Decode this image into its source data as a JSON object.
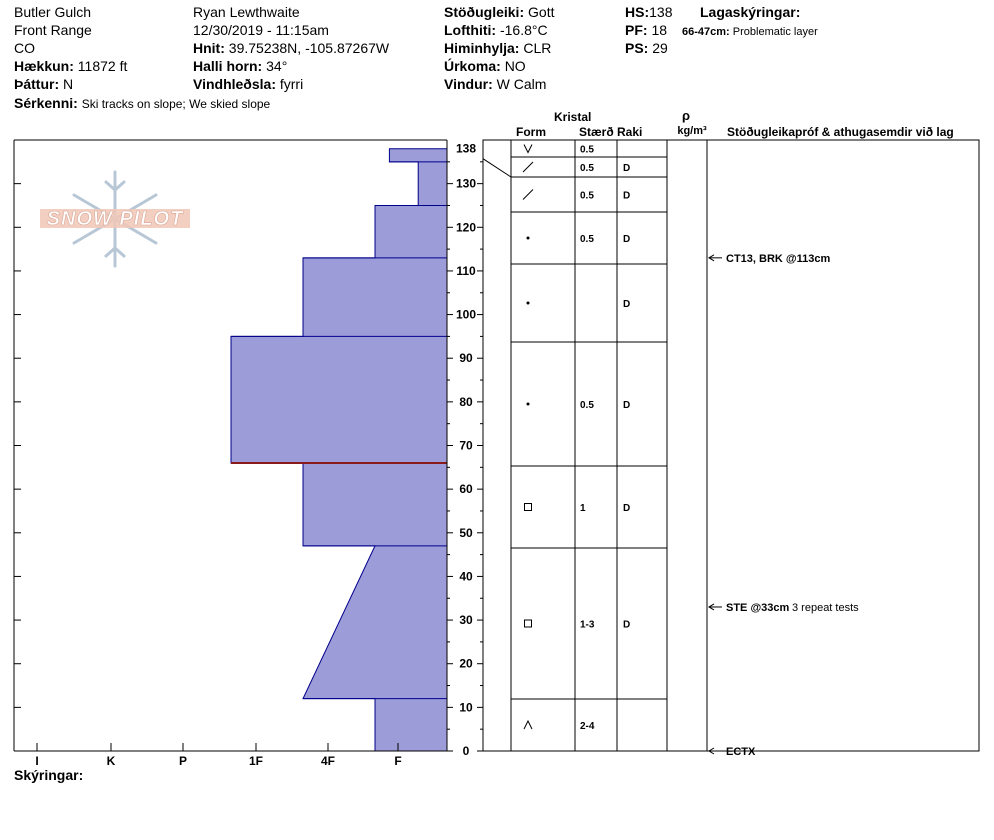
{
  "header": {
    "location": "Butler Gulch",
    "range": "Front Range",
    "state": "CO",
    "elevation_label": "Hækkun:",
    "elevation": "11872 ft",
    "aspect_label": "Þáttur:",
    "aspect": "N",
    "features_label": "Sérkenni:",
    "features": "Ski tracks on slope; We skied slope",
    "observer": "Ryan Lewthwaite",
    "datetime": "12/30/2019 - 11:15am",
    "coords_label": "Hnit:",
    "coords": "39.75238N, -105.87267W",
    "slope_label": "Halli horn:",
    "slope": "34°",
    "wind_loading_label": "Vindhleðsla:",
    "wind_loading": "fyrri",
    "stability_label": "Stöðugleiki:",
    "stability": "Gott",
    "air_temp_label": "Lofthiti:",
    "air_temp": "-16.8°C",
    "sky_label": "Himinhylja:",
    "sky": "CLR",
    "precip_label": "Úrkoma:",
    "precip": "NO",
    "wind_label": "Vindur:",
    "wind": "W Calm",
    "hs_label": "HS:",
    "hs": "138",
    "pf_label": "PF:",
    "pf": "18",
    "ps_label": "PS:",
    "ps": "29",
    "layer_notes_label": "Lagaskýringar:",
    "layer_note_range": "66-47cm:",
    "layer_note_text": "Problematic layer"
  },
  "logo": {
    "text": "SNOW PILOT"
  },
  "columns": {
    "crystal": "Kristal",
    "form": "Form",
    "size": "Stærð",
    "moisture": "Raki",
    "rho": "ρ",
    "density_unit": "kg/m³",
    "tests": "Stöðugleikapróf & athugasemdir við lag"
  },
  "footer": {
    "notes_label": "Skýringar:"
  },
  "chart_data": {
    "type": "area",
    "title": "",
    "xlabel": "",
    "ylabel": "",
    "ylim": [
      0,
      140
    ],
    "yticks": [
      0,
      10,
      20,
      30,
      40,
      50,
      60,
      70,
      80,
      90,
      100,
      110,
      120,
      130,
      138
    ],
    "hardness_ticks": [
      "I",
      "K",
      "P",
      "1F",
      "4F",
      "F"
    ],
    "hardness_profile": [
      {
        "h": 0,
        "hardness": 1.0
      },
      {
        "h": 12,
        "hardness": 1.0
      },
      {
        "h": 12,
        "hardness": 2.0
      },
      {
        "h": 47,
        "hardness": 1.0
      },
      {
        "h": 47,
        "hardness": 2.0
      },
      {
        "h": 66,
        "hardness": 2.0
      },
      {
        "h": 66,
        "hardness": 3.0
      },
      {
        "h": 95,
        "hardness": 3.0
      },
      {
        "h": 95,
        "hardness": 2.0
      },
      {
        "h": 113,
        "hardness": 2.0
      },
      {
        "h": 113,
        "hardness": 1.0
      },
      {
        "h": 125,
        "hardness": 1.0
      },
      {
        "h": 125,
        "hardness": 0.4
      },
      {
        "h": 135,
        "hardness": 0.4
      },
      {
        "h": 135,
        "hardness": 0.8
      },
      {
        "h": 138,
        "hardness": 0.8
      }
    ],
    "problem_layer_at": 66,
    "layers": [
      {
        "top": 138,
        "bottom": 135,
        "form_icon": "new-snow-icon",
        "size": "0.5",
        "moisture": ""
      },
      {
        "top": 135,
        "bottom": 131,
        "form_icon": "decomposing-icon",
        "size": "0.5",
        "moisture": "D"
      },
      {
        "top": 131,
        "bottom": 125,
        "form_icon": "decomposing-icon",
        "size": "0.5",
        "moisture": "D"
      },
      {
        "top": 125,
        "bottom": 113,
        "form_icon": "rounded-icon",
        "size": "0.5",
        "moisture": "D"
      },
      {
        "top": 113,
        "bottom": 95,
        "form_icon": "rounded-icon",
        "size": "",
        "moisture": "D"
      },
      {
        "top": 95,
        "bottom": 66,
        "form_icon": "rounded-icon",
        "size": "0.5",
        "moisture": "D"
      },
      {
        "top": 66,
        "bottom": 47,
        "form_icon": "faceted-icon",
        "size": "1",
        "moisture": "D"
      },
      {
        "top": 47,
        "bottom": 12,
        "form_icon": "faceted-icon",
        "size": "1-3",
        "moisture": "D"
      },
      {
        "top": 12,
        "bottom": 0,
        "form_icon": "depth-hoar-icon",
        "size": "2-4",
        "moisture": ""
      }
    ],
    "tests": [
      {
        "height": 113,
        "label": "CT13, BRK @113cm",
        "comment": ""
      },
      {
        "height": 33,
        "label": "STE @33cm",
        "comment": "3 repeat tests"
      },
      {
        "height": 0,
        "label": "ECTX",
        "comment": ""
      }
    ]
  },
  "colors": {
    "fill": "#9c9cd9",
    "line": "#00008b",
    "problem": "#8b1a1a",
    "logo_fill": "#f1c7b6",
    "logo_flake": "#b8c7d6"
  }
}
